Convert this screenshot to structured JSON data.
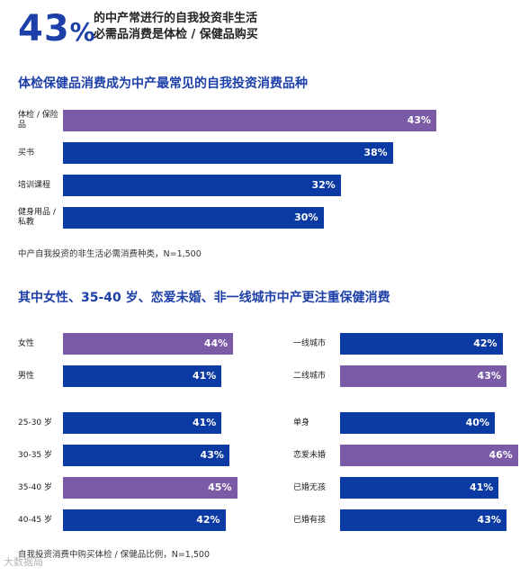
{
  "header": {
    "big_number": "43",
    "big_sign": "%",
    "line1": "的中产常进行的自我投资非生活",
    "line2": "必需品消费是体检 / 保健品购买"
  },
  "colors": {
    "highlight": "#7b5aa6",
    "base": "#0c3aa4",
    "title": "#1d3fa8"
  },
  "section1": {
    "title": "体检保健品消费成为中产最常见的自我投资消费品种",
    "note": "中产自我投资的非生活必需消费种类，N=1,500"
  },
  "section2": {
    "title": "其中女性、35-40 岁、恋爱未婚、非一线城市中产更注重保健消费",
    "note": "自我投资消费中购买体检 / 保健品比例，N=1,500"
  },
  "watermark": "大数据局",
  "chart_data": [
    {
      "type": "bar",
      "orientation": "horizontal",
      "title": "体检保健品消费成为中产最常见的自我投资消费品种",
      "note": "中产自我投资的非生活必需消费种类，N=1,500",
      "categories": [
        "体检 / 保险品",
        "买书",
        "培训课程",
        "健身用品 / 私教"
      ],
      "values": [
        43,
        38,
        32,
        30
      ],
      "labels": [
        "43%",
        "38%",
        "32%",
        "30%"
      ],
      "highlight": [
        true,
        false,
        false,
        false
      ],
      "unit": "%"
    },
    {
      "type": "bar",
      "orientation": "horizontal",
      "title": "其中女性、35-40 岁、恋爱未婚、非一线城市中产更注重保健消费",
      "note": "自我投资消费中购买体检 / 保健品比例，N=1,500",
      "unit": "%",
      "groups": [
        {
          "categories": [
            "女性",
            "男性"
          ],
          "values": [
            44,
            41
          ],
          "labels": [
            "44%",
            "41%"
          ],
          "highlight": [
            true,
            false
          ]
        },
        {
          "categories": [
            "一线城市",
            "二线城市"
          ],
          "values": [
            42,
            43
          ],
          "labels": [
            "42%",
            "43%"
          ],
          "highlight": [
            false,
            true
          ]
        },
        {
          "categories": [
            "25-30 岁",
            "30-35 岁",
            "35-40 岁",
            "40-45 岁"
          ],
          "values": [
            41,
            43,
            45,
            42
          ],
          "labels": [
            "41%",
            "43%",
            "45%",
            "42%"
          ],
          "highlight": [
            false,
            false,
            true,
            false
          ]
        },
        {
          "categories": [
            "单身",
            "恋爱未婚",
            "已婚无孩",
            "已婚有孩"
          ],
          "values": [
            40,
            46,
            41,
            43
          ],
          "labels": [
            "40%",
            "46%",
            "41%",
            "43%"
          ],
          "highlight": [
            false,
            true,
            false,
            false
          ]
        }
      ]
    }
  ]
}
